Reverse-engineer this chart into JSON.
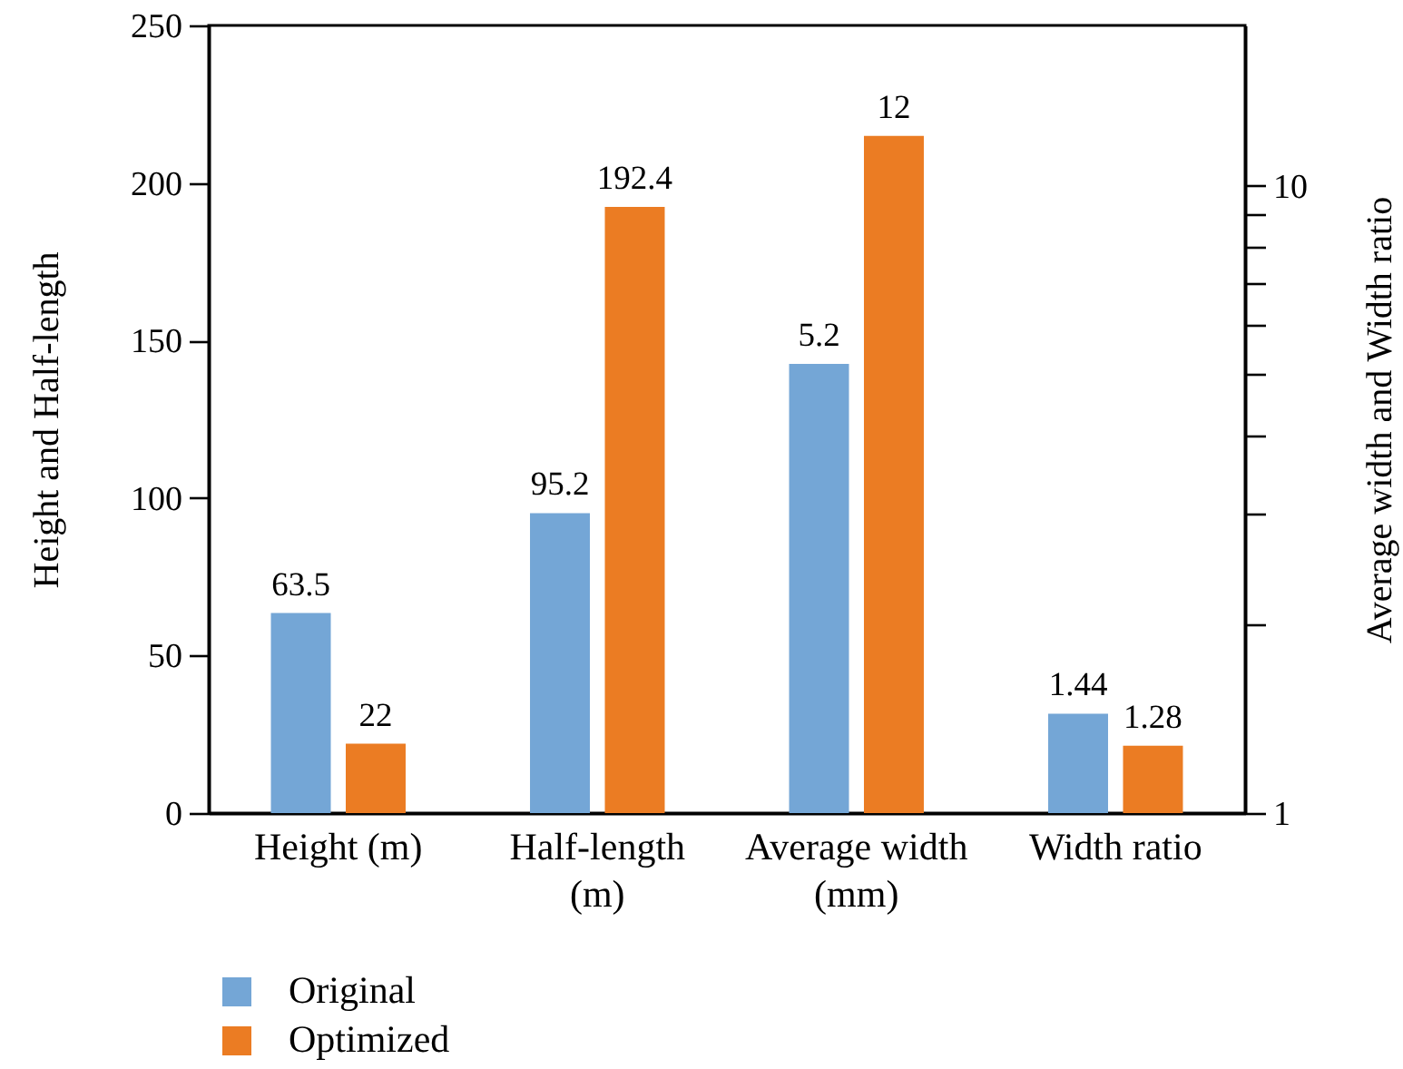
{
  "chart_data": {
    "type": "bar",
    "categories": [
      "Height (m)",
      "Half-length (m)",
      "Average width (mm)",
      "Width ratio"
    ],
    "ylabel": "Height and Half-length",
    "y2label": "Average width and Width ratio",
    "series": [
      {
        "name": "Original",
        "color": "#74a6d6",
        "values": [
          63.5,
          95.2,
          null,
          null
        ]
      },
      {
        "name": "Optimized",
        "color": "#eb7c23",
        "values": [
          22,
          192.4,
          null,
          null
        ]
      },
      {
        "color": "#74a6d6",
        "axis": "y2",
        "values": [
          null,
          null,
          5.2,
          1.44
        ]
      },
      {
        "color": "#eb7c23",
        "axis": "y2",
        "values": [
          null,
          null,
          12,
          1.28
        ]
      }
    ],
    "ylim": [
      0,
      250
    ],
    "yticks": [
      0,
      50,
      100,
      150,
      200,
      250
    ],
    "y2lim": [
      1,
      18
    ],
    "y2ticks": [
      1,
      {
        "value": 2,
        "label": null
      },
      {
        "value": 3,
        "label": null
      },
      {
        "value": 4,
        "label": null
      },
      {
        "value": 5,
        "label": null
      },
      {
        "value": 6,
        "label": null
      },
      {
        "value": 7,
        "label": null
      },
      {
        "value": 8,
        "label": null
      },
      {
        "value": 9,
        "label": null
      },
      10
    ],
    "log": "y2",
    "data_labels": true,
    "legend": "bottom left"
  }
}
